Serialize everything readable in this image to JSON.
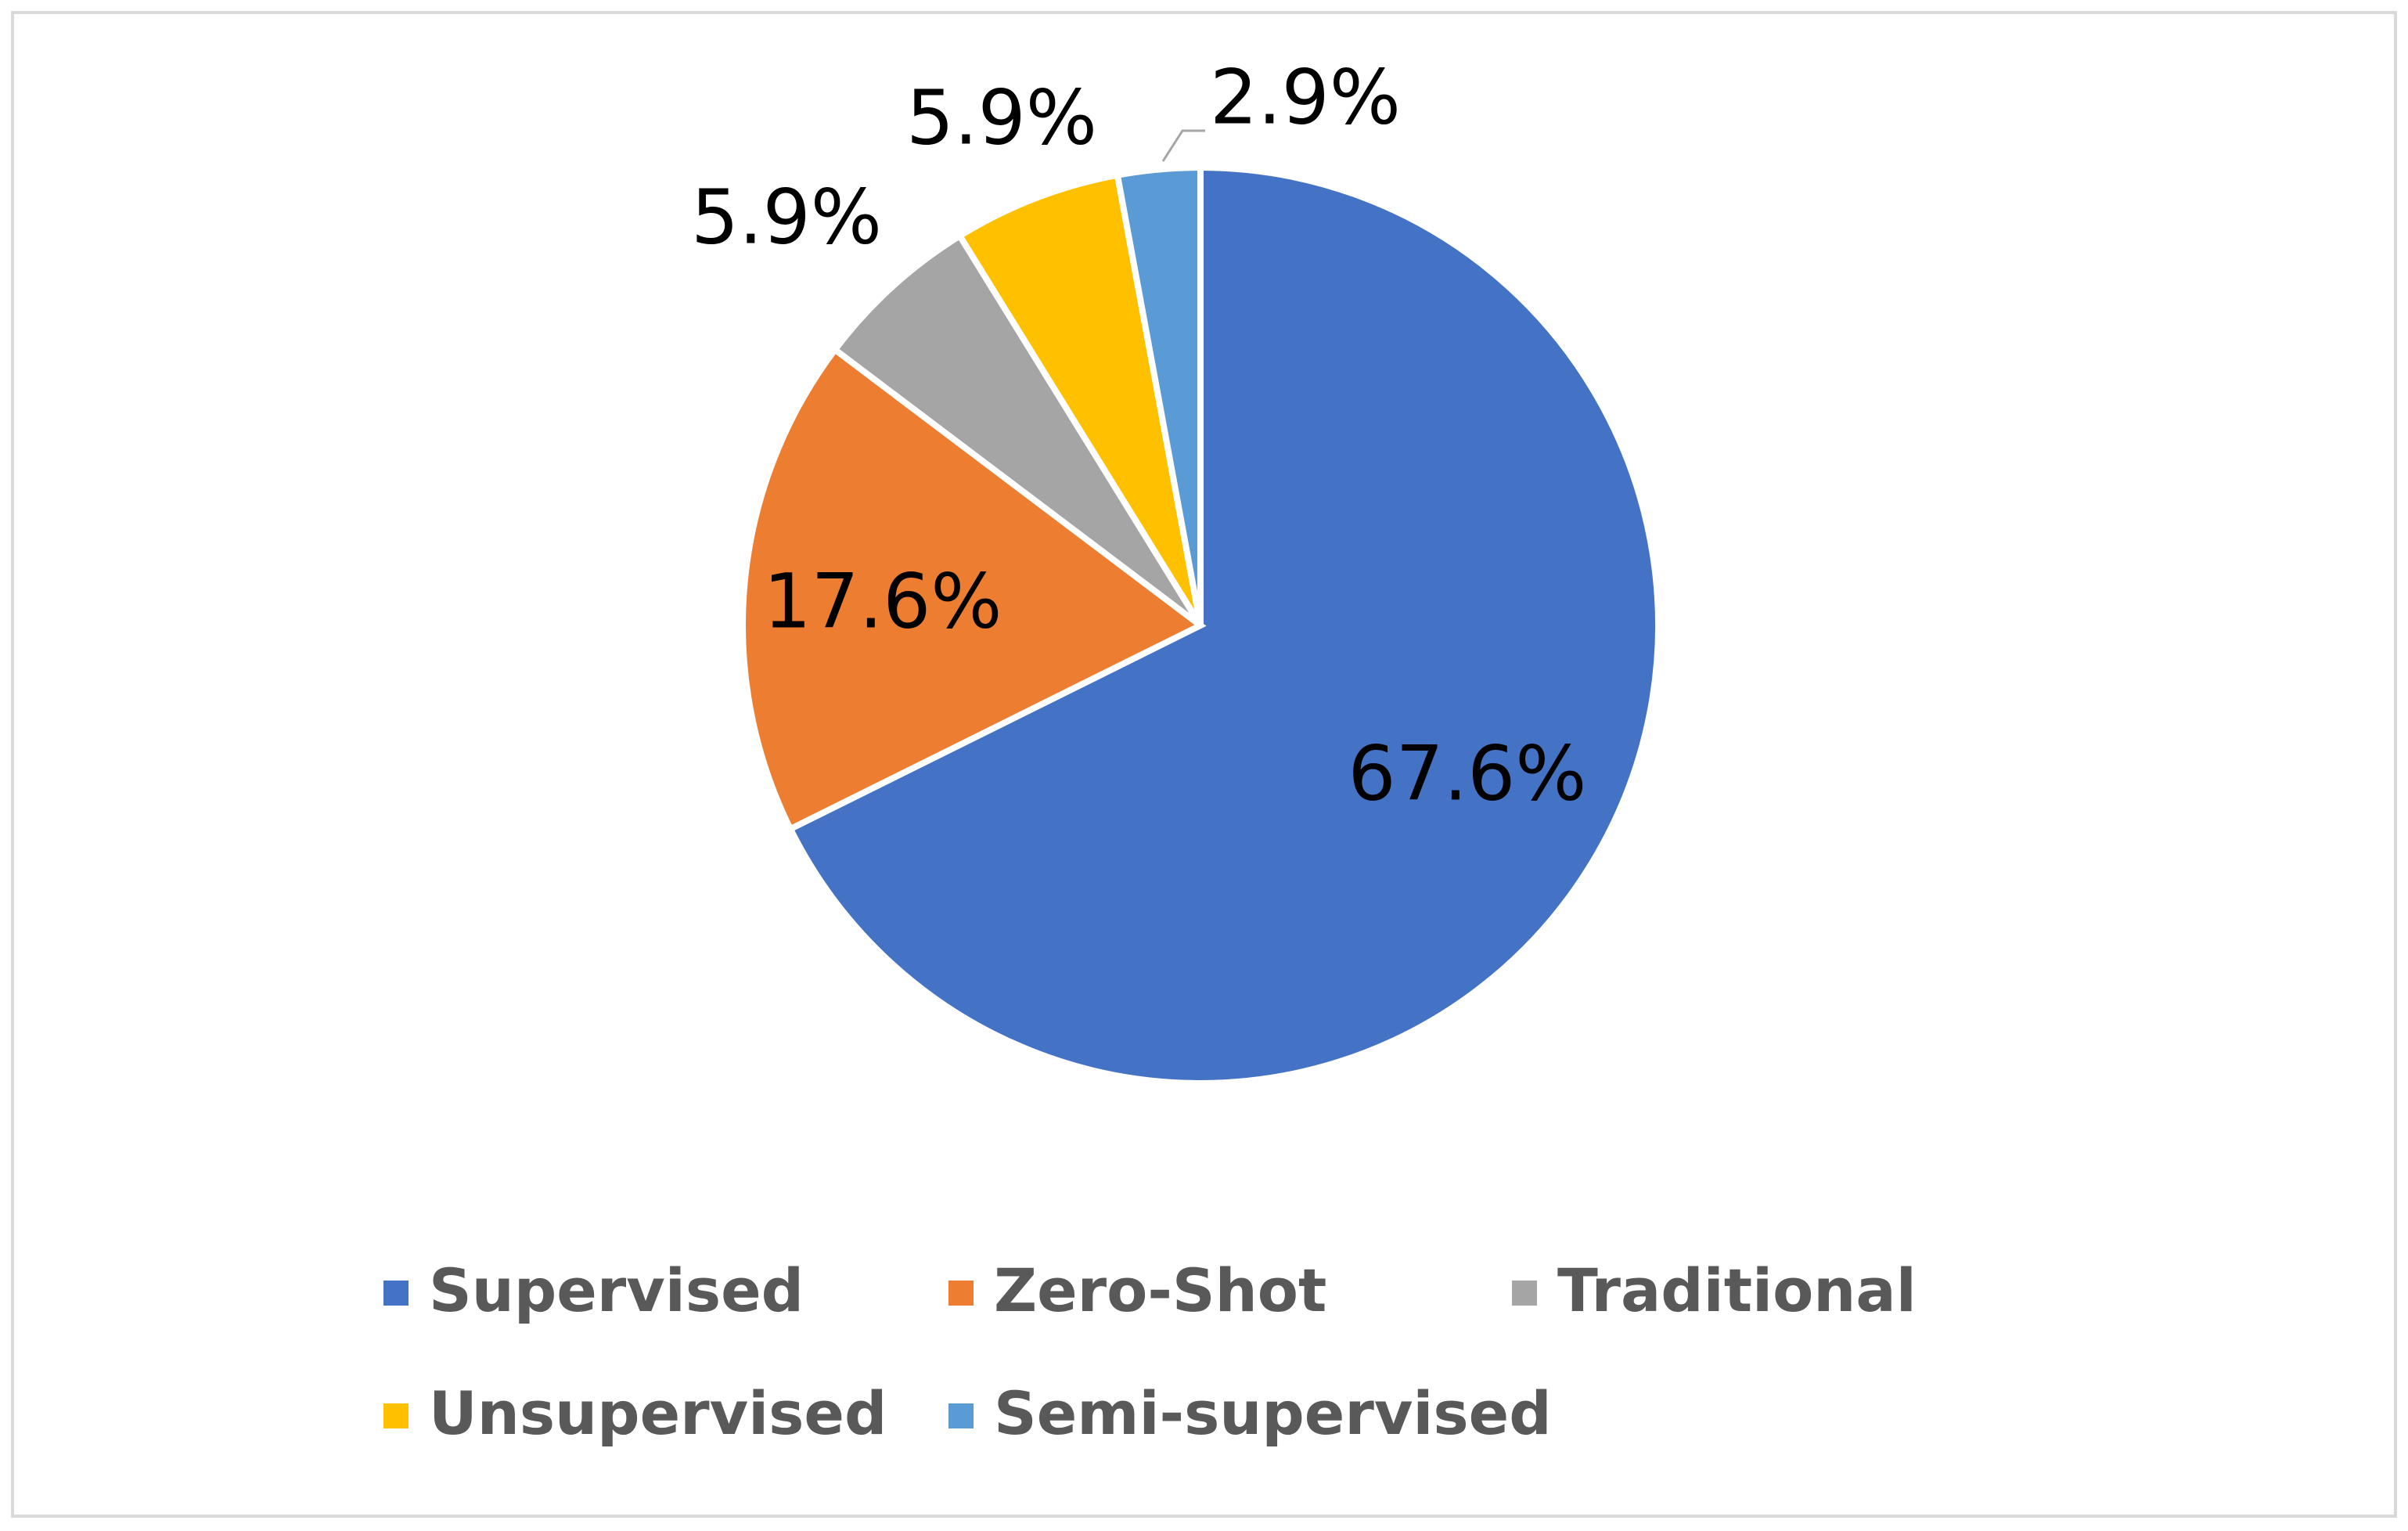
{
  "chart_data": {
    "type": "pie",
    "categories": [
      "Supervised",
      "Zero-Shot",
      "Traditional",
      "Unsupervised",
      "Semi-supervised"
    ],
    "values": [
      67.6,
      17.6,
      5.9,
      5.9,
      2.9
    ],
    "value_labels": [
      "67.6%",
      "17.6%",
      "5.9%",
      "5.9%",
      "2.9%"
    ],
    "colors": [
      "#4472c4",
      "#ed7d31",
      "#a5a5a5",
      "#ffc000",
      "#5b9bd5"
    ],
    "legend": "bottom"
  }
}
